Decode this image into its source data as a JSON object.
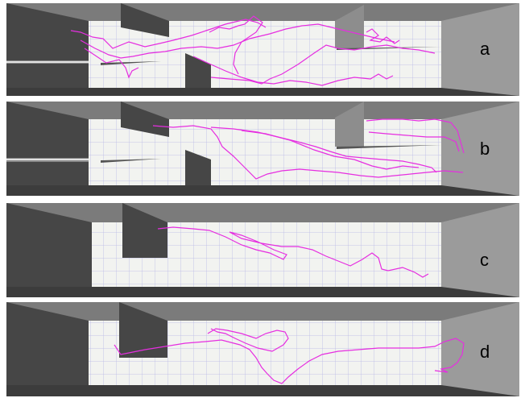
{
  "figure": {
    "panels": [
      {
        "label": "a",
        "trajectory_count": 6
      },
      {
        "label": "b",
        "trajectory_count": 4
      },
      {
        "label": "c",
        "trajectory_count": 1
      },
      {
        "label": "d",
        "trajectory_count": 1
      }
    ]
  },
  "colors": {
    "trajectory": "#e62ee0",
    "floor": "#f2f3f0",
    "grid": "#b9b8e6",
    "wall_dark": "#464646",
    "wall_mid": "#6e6e6e",
    "wall_light": "#8f8f8f",
    "wall_far": "#9b9b9b"
  }
}
